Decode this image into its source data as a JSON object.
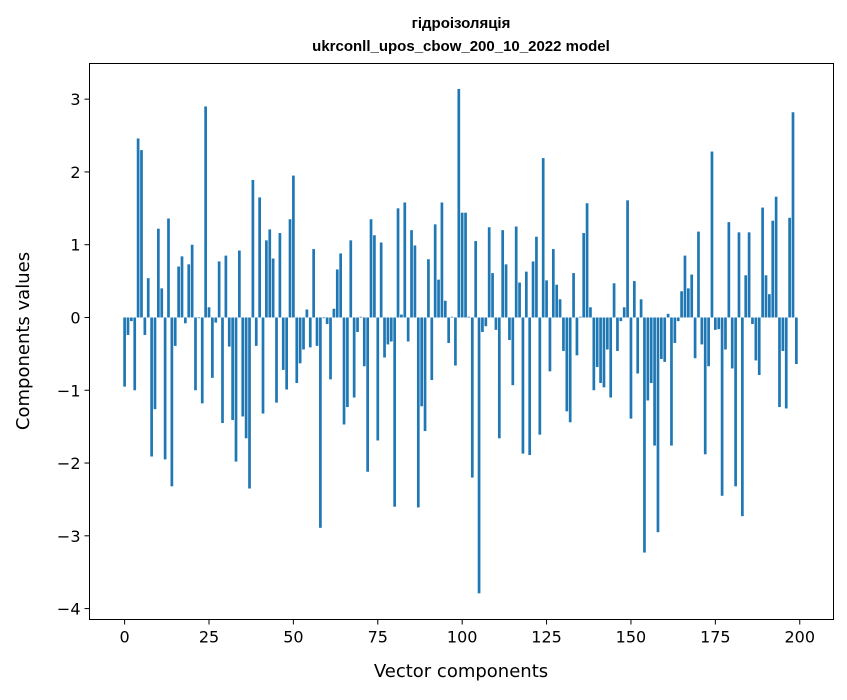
{
  "chart_data": {
    "type": "bar",
    "title": "гідроізоляція",
    "subtitle": "ukrconll_upos_cbow_200_10_2022 model",
    "xlabel": "Vector components",
    "ylabel": "Components values",
    "xlim": [
      -10.4,
      210
    ],
    "ylim": [
      -4.15,
      3.49
    ],
    "xticks": [
      0,
      25,
      50,
      75,
      100,
      125,
      150,
      175,
      200
    ],
    "yticks": [
      -4,
      -3,
      -2,
      -1,
      0,
      1,
      2,
      3
    ],
    "ytick_labels": [
      "−4",
      "−3",
      "−2",
      "−1",
      "0",
      "1",
      "2",
      "3"
    ],
    "grid": false,
    "color": "#1f77b4",
    "values": [
      -0.95,
      -0.24,
      -0.05,
      -1.0,
      2.46,
      2.3,
      -0.24,
      0.54,
      -1.91,
      -1.26,
      1.22,
      0.4,
      -1.95,
      1.36,
      -2.32,
      -0.39,
      0.7,
      0.84,
      -0.08,
      0.73,
      1.0,
      -1.0,
      -0.01,
      -1.18,
      2.9,
      0.14,
      -0.83,
      -0.07,
      0.77,
      -1.45,
      0.85,
      -0.4,
      -1.41,
      -1.98,
      0.92,
      -1.36,
      -1.66,
      -2.35,
      1.89,
      -0.39,
      1.65,
      -1.32,
      1.06,
      1.21,
      0.81,
      -1.17,
      1.16,
      -0.72,
      -0.99,
      1.35,
      1.95,
      -0.9,
      -0.63,
      -0.44,
      0.11,
      -0.41,
      0.94,
      -0.39,
      -2.89,
      -0.01,
      -0.09,
      -0.85,
      0.12,
      0.66,
      0.88,
      -1.47,
      -1.23,
      1.06,
      -1.1,
      -0.2,
      0.01,
      -0.67,
      -2.12,
      1.35,
      1.13,
      -1.69,
      1.03,
      -0.55,
      -0.37,
      -0.33,
      -2.6,
      1.5,
      0.04,
      1.58,
      -0.33,
      1.2,
      0.99,
      -2.61,
      -1.22,
      -1.56,
      0.8,
      -0.86,
      1.28,
      0.52,
      1.58,
      0.23,
      -0.35,
      0.01,
      -0.66,
      3.14,
      1.44,
      1.44,
      0.01,
      -2.2,
      1.05,
      -3.79,
      -0.2,
      -0.12,
      1.24,
      0.61,
      -0.17,
      -1.66,
      1.2,
      0.73,
      -0.31,
      -0.93,
      1.25,
      0.48,
      -1.87,
      0.63,
      -1.89,
      0.77,
      1.11,
      -1.61,
      2.19,
      0.51,
      -0.74,
      0.94,
      0.45,
      0.25,
      -0.46,
      -1.29,
      -1.44,
      0.61,
      -0.52,
      0.01,
      1.16,
      1.57,
      0.14,
      -1.0,
      -0.68,
      -0.9,
      -0.96,
      -0.44,
      -1.1,
      0.47,
      -0.46,
      -0.05,
      0.14,
      1.61,
      -1.39,
      0.5,
      -0.77,
      0.25,
      -3.23,
      -1.14,
      -0.9,
      -1.76,
      -2.95,
      -0.57,
      -0.61,
      0.05,
      -1.76,
      -0.35,
      -0.05,
      0.36,
      0.85,
      0.4,
      0.59,
      -0.56,
      1.18,
      -0.37,
      -1.88,
      -0.67,
      2.28,
      -0.17,
      -0.16,
      -2.45,
      -0.44,
      1.31,
      -0.7,
      -2.32,
      1.17,
      -2.73,
      0.58,
      1.17,
      -0.09,
      -0.59,
      -0.79,
      1.51,
      0.58,
      0.32,
      1.33,
      1.66,
      -1.23,
      -0.46,
      -1.25,
      1.37,
      2.82,
      -0.64
    ]
  }
}
